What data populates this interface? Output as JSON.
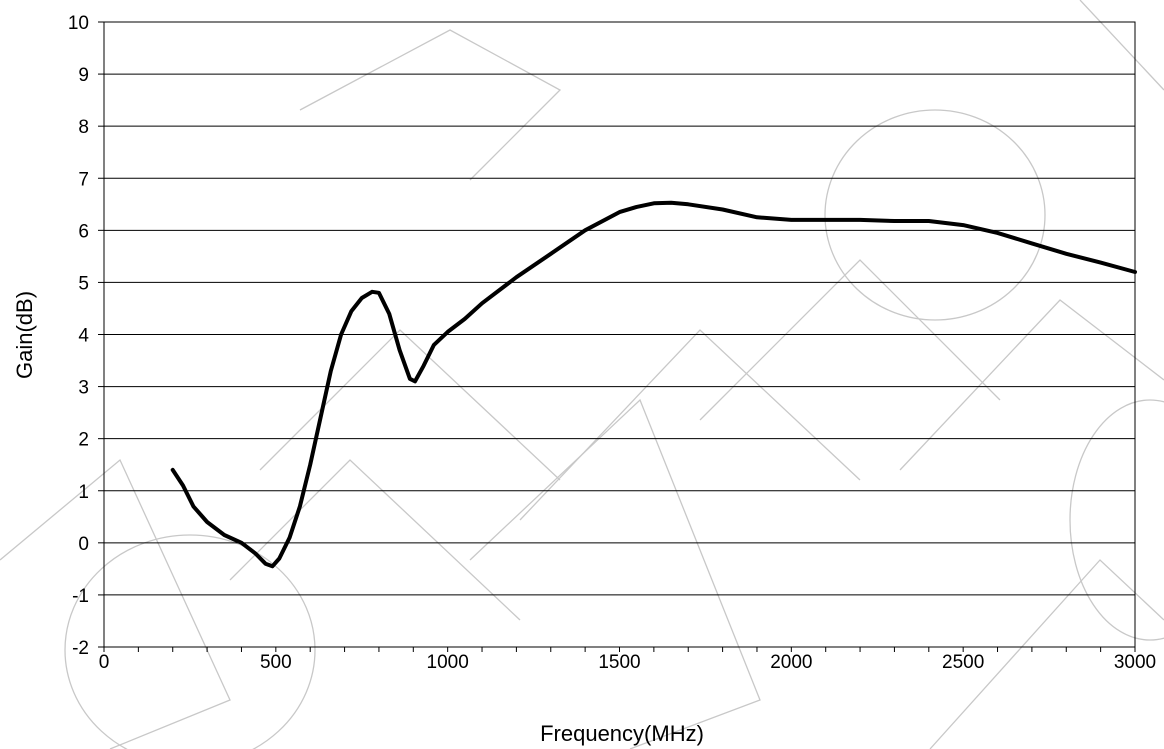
{
  "chart_data": {
    "type": "line",
    "title": "",
    "xlabel": "Frequency(MHz)",
    "ylabel": "Gain(dB)",
    "xlim": [
      0,
      3000
    ],
    "ylim": [
      -2,
      10
    ],
    "x_ticks": [
      0,
      500,
      1000,
      1500,
      2000,
      2500,
      3000
    ],
    "x_tick_labels": [
      "0",
      "500",
      "1000",
      "1500",
      "2000",
      "2500",
      "3000"
    ],
    "x_minor_step": 100,
    "y_ticks": [
      -2,
      -1,
      0,
      1,
      2,
      3,
      4,
      5,
      6,
      7,
      8,
      9,
      10
    ],
    "y_tick_labels": [
      "-2",
      "-1",
      "0",
      "1",
      "2",
      "3",
      "4",
      "5",
      "6",
      "7",
      "8",
      "9",
      "10"
    ],
    "grid": "horizontal",
    "legend": "none",
    "series_color": "#000000",
    "series": [
      {
        "points": [
          [
            200,
            1.4
          ],
          [
            230,
            1.1
          ],
          [
            260,
            0.7
          ],
          [
            300,
            0.4
          ],
          [
            350,
            0.15
          ],
          [
            400,
            0.0
          ],
          [
            440,
            -0.2
          ],
          [
            470,
            -0.4
          ],
          [
            490,
            -0.45
          ],
          [
            510,
            -0.3
          ],
          [
            540,
            0.1
          ],
          [
            570,
            0.7
          ],
          [
            600,
            1.5
          ],
          [
            630,
            2.4
          ],
          [
            660,
            3.3
          ],
          [
            690,
            4.0
          ],
          [
            720,
            4.45
          ],
          [
            750,
            4.7
          ],
          [
            780,
            4.82
          ],
          [
            800,
            4.8
          ],
          [
            830,
            4.4
          ],
          [
            860,
            3.7
          ],
          [
            890,
            3.15
          ],
          [
            905,
            3.1
          ],
          [
            930,
            3.4
          ],
          [
            960,
            3.8
          ],
          [
            1000,
            4.05
          ],
          [
            1050,
            4.3
          ],
          [
            1100,
            4.6
          ],
          [
            1200,
            5.1
          ],
          [
            1300,
            5.55
          ],
          [
            1400,
            6.0
          ],
          [
            1500,
            6.35
          ],
          [
            1550,
            6.45
          ],
          [
            1600,
            6.52
          ],
          [
            1650,
            6.53
          ],
          [
            1700,
            6.5
          ],
          [
            1800,
            6.4
          ],
          [
            1900,
            6.25
          ],
          [
            2000,
            6.2
          ],
          [
            2100,
            6.2
          ],
          [
            2200,
            6.2
          ],
          [
            2300,
            6.18
          ],
          [
            2400,
            6.18
          ],
          [
            2500,
            6.1
          ],
          [
            2600,
            5.95
          ],
          [
            2700,
            5.75
          ],
          [
            2800,
            5.55
          ],
          [
            2900,
            5.38
          ],
          [
            3000,
            5.2
          ]
        ]
      }
    ]
  }
}
